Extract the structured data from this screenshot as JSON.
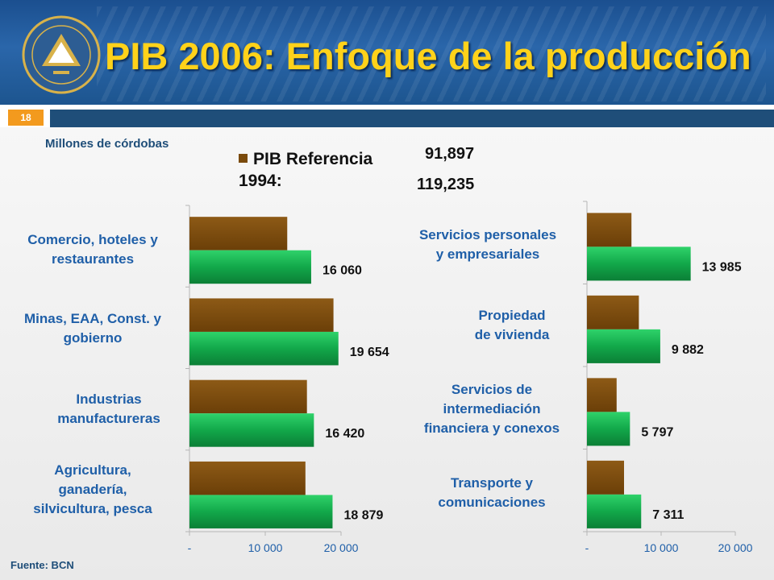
{
  "header": {
    "title": "PIB 2006: Enfoque de la producción",
    "slide_number": "18"
  },
  "units_label": "Millones de córdobas",
  "source": "Fuente: BCN",
  "legend": {
    "label_line1": "PIB Referencia",
    "label_line2": "1994:",
    "total_1": "91,897",
    "total_2": "119,235"
  },
  "colors": {
    "series_brown": "#7a4a0b",
    "series_green": "#12a84a",
    "title": "#ffd21a",
    "category_text": "#1f5fa8"
  },
  "chart_data": [
    {
      "type": "bar",
      "orientation": "horizontal",
      "categories": [
        "Comercio, hoteles y restaurantes",
        "Minas, EAA, Const. y gobierno",
        "Industrias manufactureras",
        "Agricultura, ganadería, silvicultura, pesca"
      ],
      "series": [
        {
          "name": "PIB Referencia 1994:",
          "values": [
            12900,
            19000,
            15500,
            15300
          ]
        },
        {
          "values": [
            16060,
            19654,
            16420,
            18879
          ]
        }
      ],
      "data_labels": [
        "16 060",
        "19 654",
        "16 420",
        "18 879"
      ],
      "xlim": [
        0,
        20000
      ],
      "xticks": [
        0,
        10000,
        20000
      ],
      "xtick_labels": [
        "-",
        "10 000",
        "20 000"
      ]
    },
    {
      "type": "bar",
      "orientation": "horizontal",
      "categories": [
        "Servicios personales y empresariales",
        "Propiedad de vivienda",
        "Servicios de intermediación financiera y conexos",
        "Transporte y comunicaciones"
      ],
      "series": [
        {
          "name": "PIB Referencia 1994:",
          "values": [
            6000,
            7000,
            4000,
            5000
          ]
        },
        {
          "values": [
            13985,
            9882,
            5797,
            7311
          ]
        }
      ],
      "data_labels": [
        "13 985",
        "9 882",
        "5 797",
        "7 311"
      ],
      "xlim": [
        0,
        20000
      ],
      "xticks": [
        0,
        10000,
        20000
      ],
      "xtick_labels": [
        "-",
        "10 000",
        "20 000"
      ]
    }
  ],
  "category_lines": [
    [
      "Comercio, hoteles y",
      "restaurantes"
    ],
    [
      "Minas, EAA, Const. y",
      "gobierno"
    ],
    [
      "Industrias",
      "manufactureras"
    ],
    [
      "Agricultura,",
      "ganadería,",
      "silvicultura, pesca"
    ],
    [
      "Servicios personales",
      "y empresariales"
    ],
    [
      "Propiedad",
      "de vivienda"
    ],
    [
      "Servicios de",
      "intermediación",
      "financiera y conexos"
    ],
    [
      "Transporte y",
      "comunicaciones"
    ]
  ]
}
